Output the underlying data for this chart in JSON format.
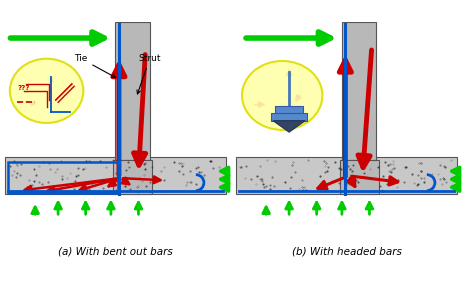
{
  "title_a": "(a) With bent out bars",
  "title_b": "(b) With headed bars",
  "tie_label": "Tie",
  "strut_label": "Strut",
  "bg_color": "#ffffff",
  "col_gray": "#b8b8b8",
  "foot_gray": "#c8c8c8",
  "green": "#00cc00",
  "red": "#cc0000",
  "blue": "#0055cc",
  "yellow_fill": "#ffffaa",
  "yellow_edge": "#dddd00",
  "label_fontsize": 7.5,
  "annot_fontsize": 6.5
}
